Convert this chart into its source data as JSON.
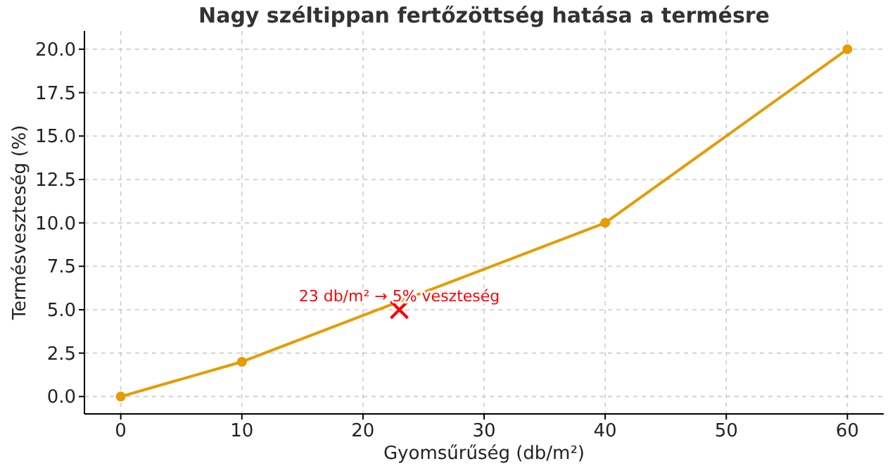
{
  "chart_data": {
    "type": "line",
    "title": "Nagy széltippan fertőzöttség hatása a termésre",
    "xlabel": "Gyomsűrűség (db/m²)",
    "ylabel": "Termésveszteség (%)",
    "xlim": [
      -3,
      63
    ],
    "ylim": [
      -1,
      21.05
    ],
    "xticks": [
      0,
      10,
      20,
      30,
      40,
      50,
      60
    ],
    "yticks": [
      {
        "value": 0,
        "label": "0.0"
      },
      {
        "value": 2.5,
        "label": "2.5"
      },
      {
        "value": 5,
        "label": "5.0"
      },
      {
        "value": 7.5,
        "label": "7.5"
      },
      {
        "value": 10,
        "label": "10.0"
      },
      {
        "value": 12.5,
        "label": "12.5"
      },
      {
        "value": 15,
        "label": "15.0"
      },
      {
        "value": 17.5,
        "label": "17.5"
      },
      {
        "value": 20,
        "label": "20.0"
      }
    ],
    "grid": true,
    "marker": "circle",
    "line_style": "solid",
    "series": [
      {
        "color": "#e69b00",
        "x": [
          0,
          10,
          40,
          60
        ],
        "values": [
          0,
          2,
          10,
          20
        ]
      },
      {
        "type": "scatter",
        "marker": "cross",
        "color": "#ff0000",
        "x": [
          23
        ],
        "values": [
          5
        ]
      }
    ],
    "annotations": [
      {
        "text": "23 db/m² → 5% veszteség",
        "x": 23,
        "y": 5
      }
    ]
  }
}
